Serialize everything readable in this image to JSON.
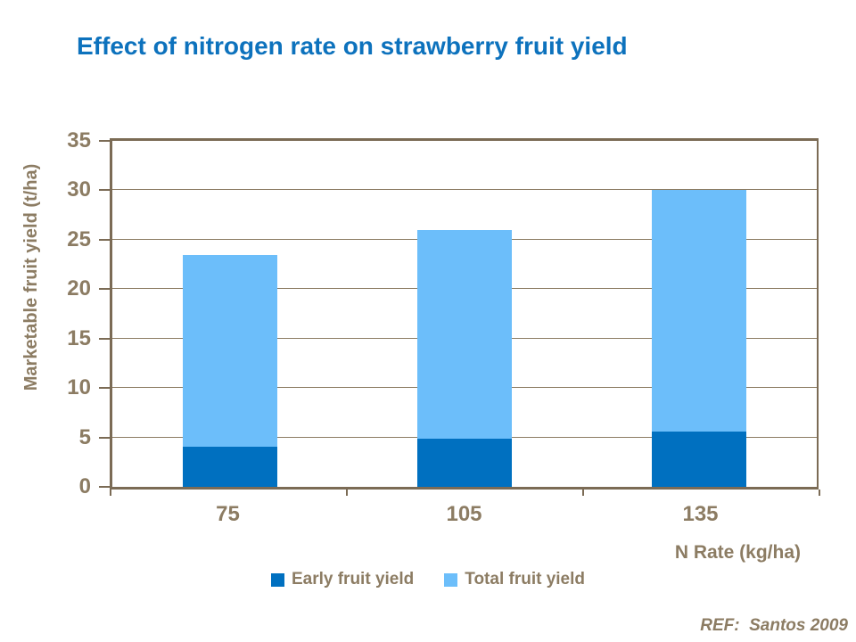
{
  "title": {
    "text": "Effect of nitrogen rate on strawberry fruit yield",
    "color": "#0d72bd"
  },
  "chart_data": {
    "type": "bar",
    "bar_mode": "overlapped (Early drawn in front of Total, both from baseline)",
    "title": "Effect of nitrogen rate on strawberry fruit yield",
    "categories": [
      "75",
      "105",
      "135"
    ],
    "series": [
      {
        "name": "Early fruit yield",
        "color": "#0070c0",
        "values": [
          4.1,
          4.9,
          5.6
        ]
      },
      {
        "name": "Total fruit yield",
        "color": "#6cbefa",
        "values": [
          23.5,
          26,
          30
        ]
      }
    ],
    "xlabel": "N Rate (kg/ha)",
    "ylabel": "Marketable fruit yield (t/ha)",
    "ylim": [
      0,
      35
    ],
    "yticks": [
      0,
      5,
      10,
      15,
      20,
      25,
      30,
      35
    ],
    "grid": true,
    "legend_position": "bottom",
    "axis_color": "#7b6b55",
    "gridline_color": "#8c7c63",
    "tick_label_color": "#8c7c63"
  },
  "footer": {
    "ref_label": "REF:  Santos 2009"
  }
}
